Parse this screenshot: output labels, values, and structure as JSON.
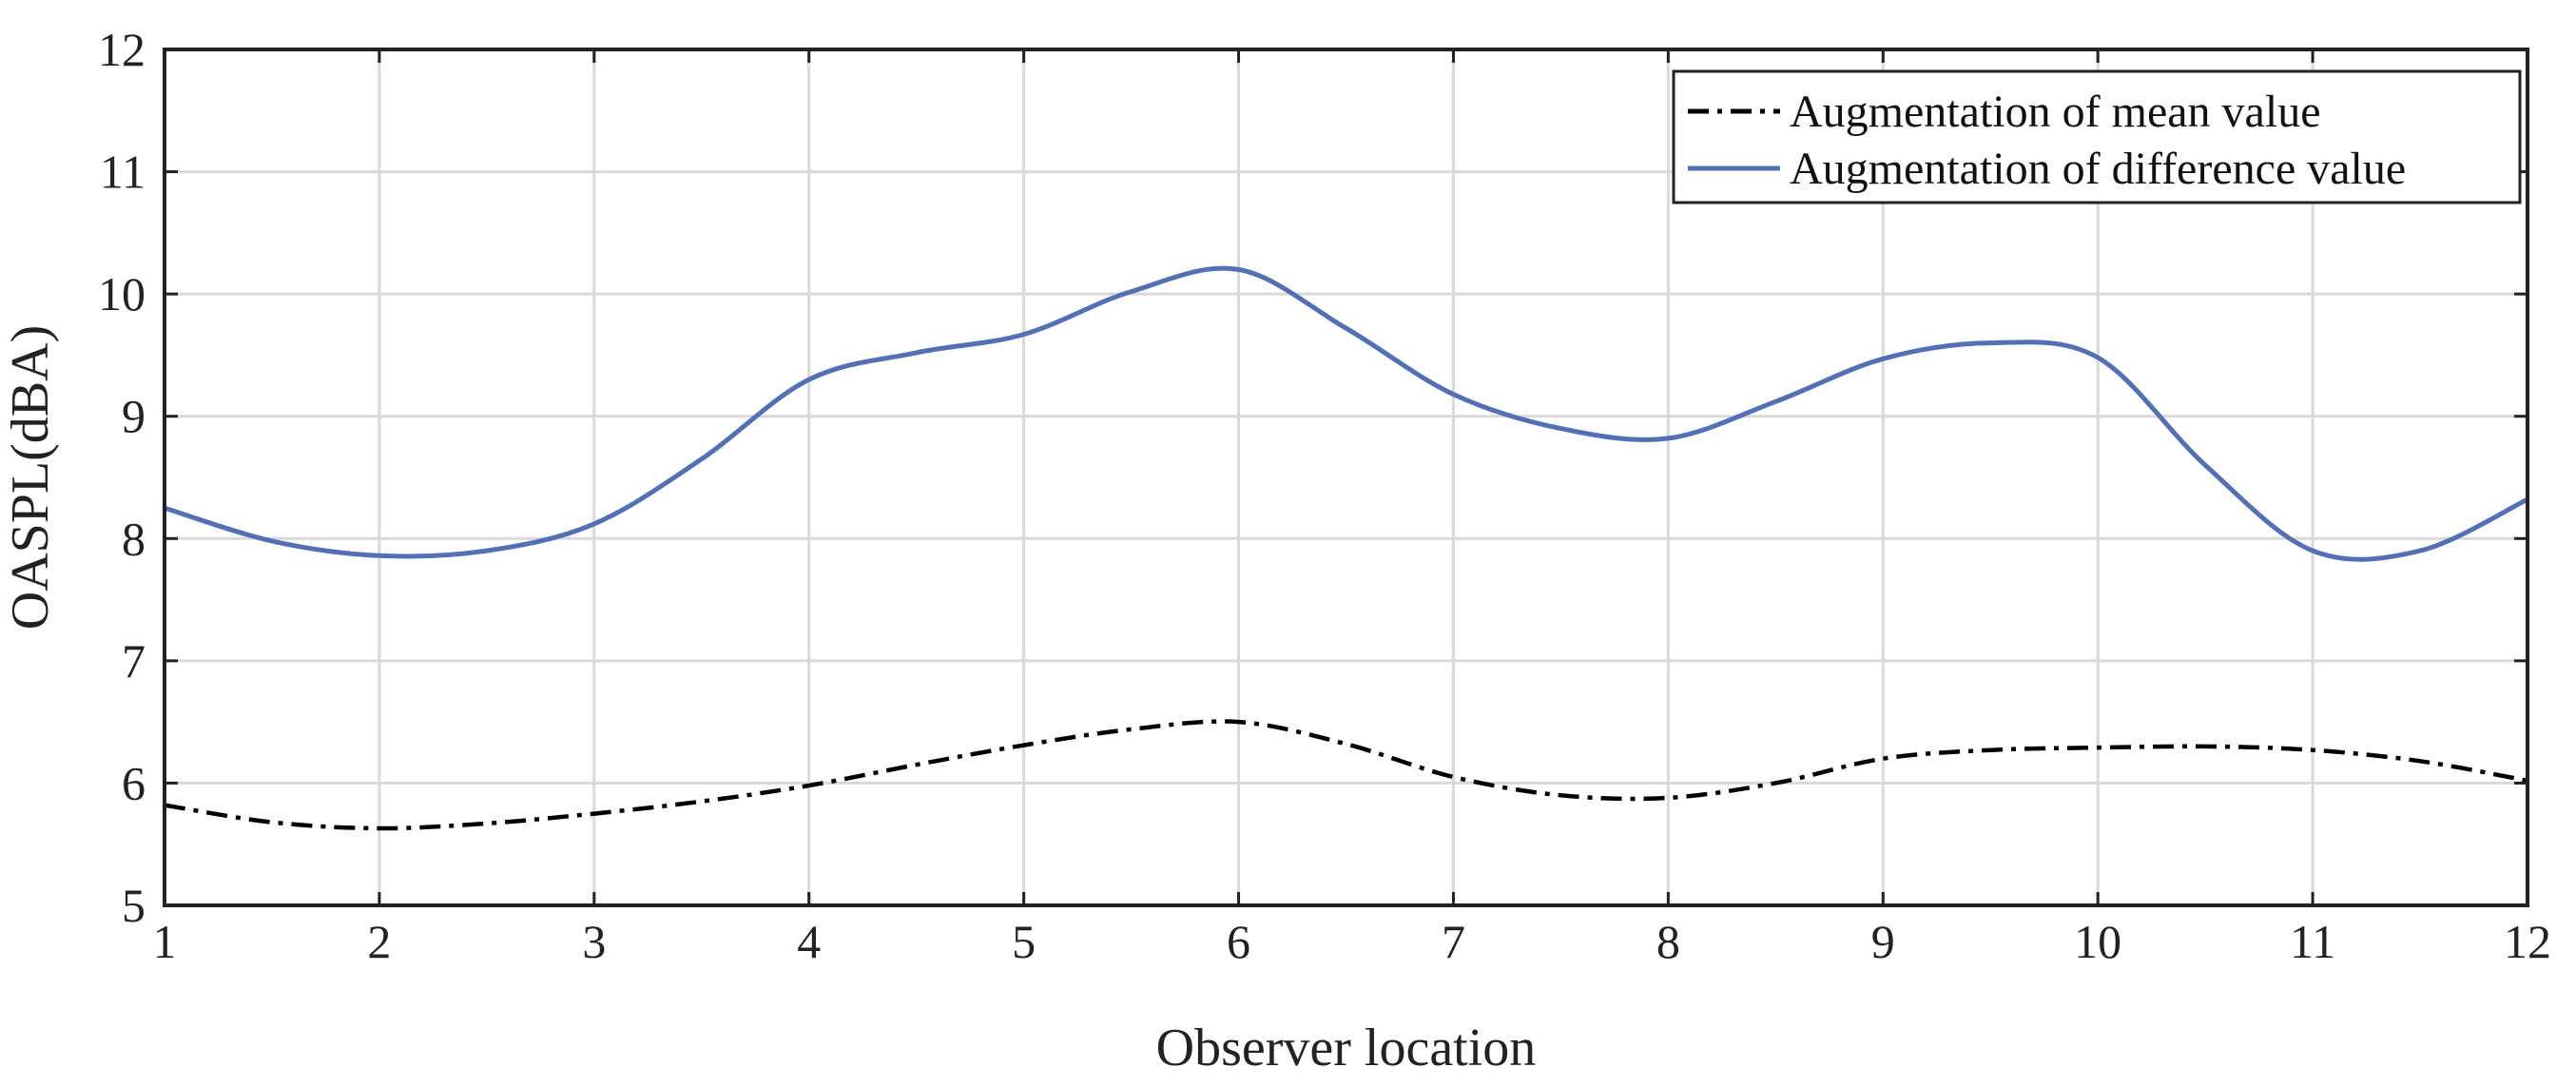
{
  "chart_data": {
    "type": "line",
    "xlabel": "Observer location",
    "ylabel": "OASPL(dBA)",
    "xlim": [
      1,
      12
    ],
    "ylim": [
      5,
      12
    ],
    "x_ticks": [
      1,
      2,
      3,
      4,
      5,
      6,
      7,
      8,
      9,
      10,
      11,
      12
    ],
    "y_ticks": [
      5,
      6,
      7,
      8,
      9,
      10,
      11,
      12
    ],
    "grid": true,
    "legend_position": "top-right",
    "series": [
      {
        "name": "Augmentation of mean value",
        "color": "#000000",
        "line_style": "dash-dot",
        "x": [
          1,
          1.5,
          2,
          2.5,
          3,
          3.5,
          4,
          4.5,
          5,
          5.5,
          6,
          6.5,
          7,
          7.5,
          8,
          8.5,
          9,
          9.5,
          10,
          10.5,
          11,
          11.5,
          12
        ],
        "y": [
          5.82,
          5.68,
          5.63,
          5.67,
          5.75,
          5.85,
          5.98,
          6.15,
          6.31,
          6.44,
          6.5,
          6.32,
          6.05,
          5.9,
          5.88,
          6.0,
          6.2,
          6.27,
          6.29,
          6.3,
          6.27,
          6.18,
          6.02
        ]
      },
      {
        "name": "Augmentation of difference value",
        "color": "#5470b4",
        "line_style": "solid",
        "x": [
          1,
          1.5,
          2,
          2.5,
          3,
          3.5,
          4,
          4.5,
          5,
          5.5,
          6,
          6.5,
          7,
          7.5,
          8,
          8.5,
          9,
          9.5,
          10,
          10.5,
          11,
          11.5,
          12
        ],
        "y": [
          8.25,
          7.98,
          7.86,
          7.9,
          8.12,
          8.65,
          9.3,
          9.52,
          9.67,
          10.02,
          10.2,
          9.72,
          9.18,
          8.9,
          8.82,
          9.12,
          9.47,
          9.6,
          9.48,
          8.6,
          7.9,
          7.9,
          8.32
        ]
      }
    ]
  }
}
